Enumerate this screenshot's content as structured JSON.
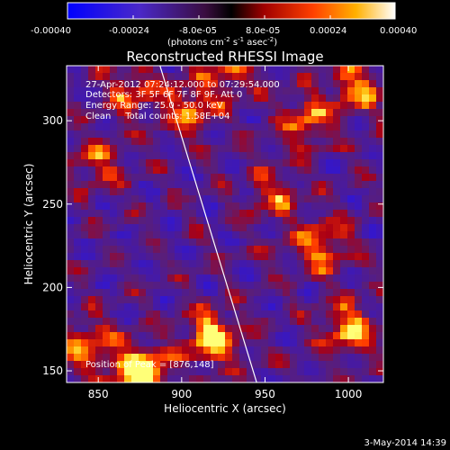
{
  "chart_data": {
    "type": "heatmap",
    "title": "Reconstructed RHESSI Image",
    "xlabel": "Heliocentric X (arcsec)",
    "ylabel": "Heliocentric Y (arcsec)",
    "xlim": [
      831,
      1021
    ],
    "ylim": [
      143,
      333
    ],
    "xticks": [
      850,
      900,
      950,
      1000
    ],
    "yticks": [
      150,
      200,
      250,
      300
    ],
    "colorbar": {
      "ticks": [
        "-0.00040",
        "-0.00024",
        "-8.0e-05",
        "8.0e-05",
        "0.00024",
        "0.00040"
      ],
      "range": [
        -0.0004,
        0.0004
      ],
      "units_prefix": "(photons cm",
      "units_sup1": "-2",
      "units_mid": " s",
      "units_sup2": "-1",
      "units_mid2": " asec",
      "units_sup3": "-2",
      "units_suffix": ")"
    },
    "annotations": {
      "time": "27-Apr-2012 07:24:12.000 to 07:29:54.000",
      "detectors": "Detectors: 3F 5F 6F 7F 8F 9F, Att 0",
      "energy": "Energy Range: 25.0 - 50.0 keV",
      "clean": "Clean     Total counts: 1.58E+04",
      "peak": "Position of Peak = [876,148]"
    },
    "bright_sources": [
      {
        "x": 876,
        "y": 148,
        "strength": 1.0
      },
      {
        "x": 918,
        "y": 170,
        "strength": 0.85
      },
      {
        "x": 1000,
        "y": 175,
        "strength": 0.7
      },
      {
        "x": 985,
        "y": 225,
        "strength": 0.65
      },
      {
        "x": 1005,
        "y": 320,
        "strength": 0.6
      },
      {
        "x": 975,
        "y": 300,
        "strength": 0.55
      },
      {
        "x": 905,
        "y": 308,
        "strength": 0.6
      },
      {
        "x": 845,
        "y": 165,
        "strength": 0.6
      },
      {
        "x": 850,
        "y": 275,
        "strength": 0.45
      },
      {
        "x": 955,
        "y": 255,
        "strength": 0.45
      },
      {
        "x": 930,
        "y": 330,
        "strength": 0.5
      },
      {
        "x": 870,
        "y": 318,
        "strength": 0.5
      }
    ],
    "limb_line": {
      "x": [
        887,
        945
      ],
      "y": [
        333,
        143
      ]
    },
    "colors": {
      "background": "#000000",
      "negative_low": "#0000ff",
      "zero": "#000000",
      "positive_mid": "#ff2000",
      "positive_high": "#ffff80"
    }
  },
  "footer": {
    "date": "3-May-2014 14:39"
  }
}
